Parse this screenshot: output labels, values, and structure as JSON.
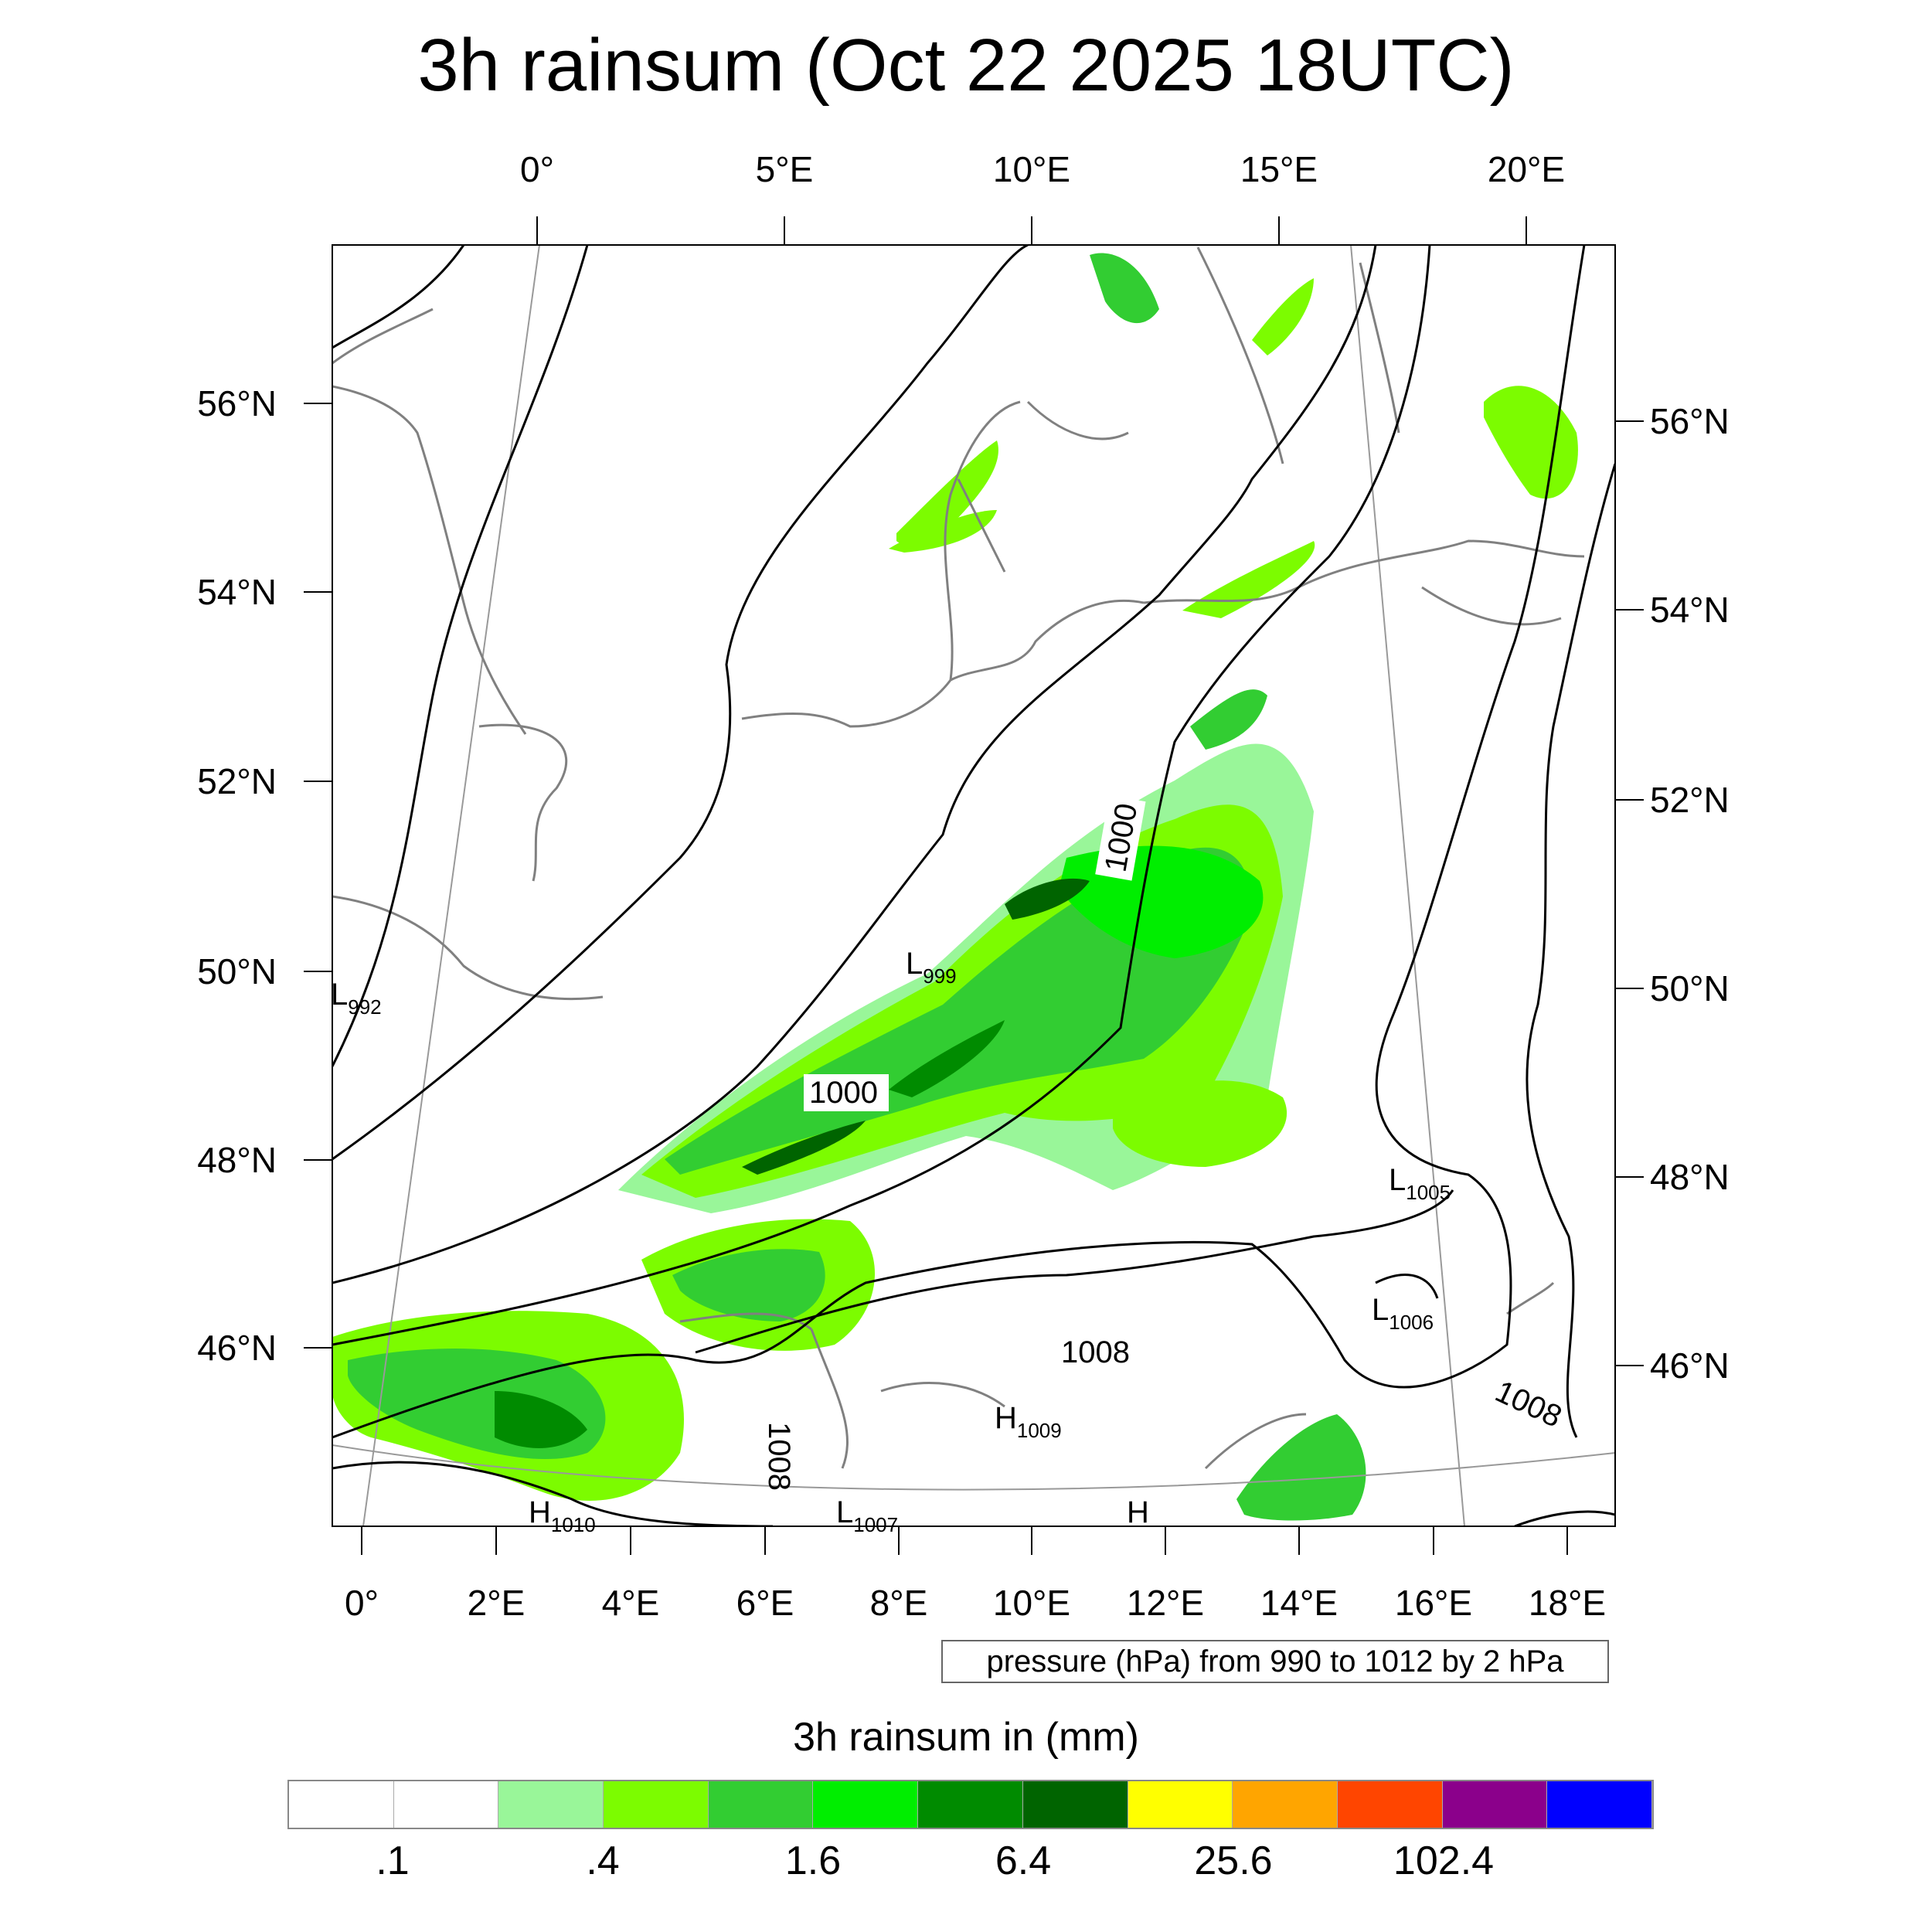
{
  "title": "3h rainsum (Oct 22 2025 18UTC)",
  "top_lon_labels": [
    "0°",
    "5°E",
    "10°E",
    "15°E",
    "20°E"
  ],
  "bottom_lon_labels": [
    "0°",
    "2°E",
    "4°E",
    "6°E",
    "8°E",
    "10°E",
    "12°E",
    "14°E",
    "16°E",
    "18°E"
  ],
  "left_lat_labels": [
    "56°N",
    "54°N",
    "52°N",
    "50°N",
    "48°N",
    "46°N"
  ],
  "right_lat_labels": [
    "56°N",
    "54°N",
    "52°N",
    "50°N",
    "48°N",
    "46°N"
  ],
  "isobar_labels": {
    "l992": "992",
    "l999": "999",
    "l1005": "1005",
    "l1006": "1006",
    "l1007": "1007",
    "h1009": "1009",
    "h1010": "1010",
    "c1000a": "1000",
    "c1000b": "1000",
    "c1008a": "1008",
    "c1008b": "1008",
    "c1008c": "1008"
  },
  "pressure_note": "pressure (hPa) from 990 to 1012 by 2 hPa",
  "legend": {
    "title": "3h rainsum in (mm)",
    "colors": [
      "#ffffff",
      "#ffffff",
      "#99f699",
      "#7cfc00",
      "#32cd32",
      "#00ee00",
      "#008b00",
      "#006400",
      "#ffff00",
      "#ffa500",
      "#ff4500",
      "#8b008b",
      "#0000ff"
    ],
    "labels": [
      ".1",
      ".4",
      "1.6",
      "6.4",
      "25.6",
      "102.4"
    ]
  }
}
